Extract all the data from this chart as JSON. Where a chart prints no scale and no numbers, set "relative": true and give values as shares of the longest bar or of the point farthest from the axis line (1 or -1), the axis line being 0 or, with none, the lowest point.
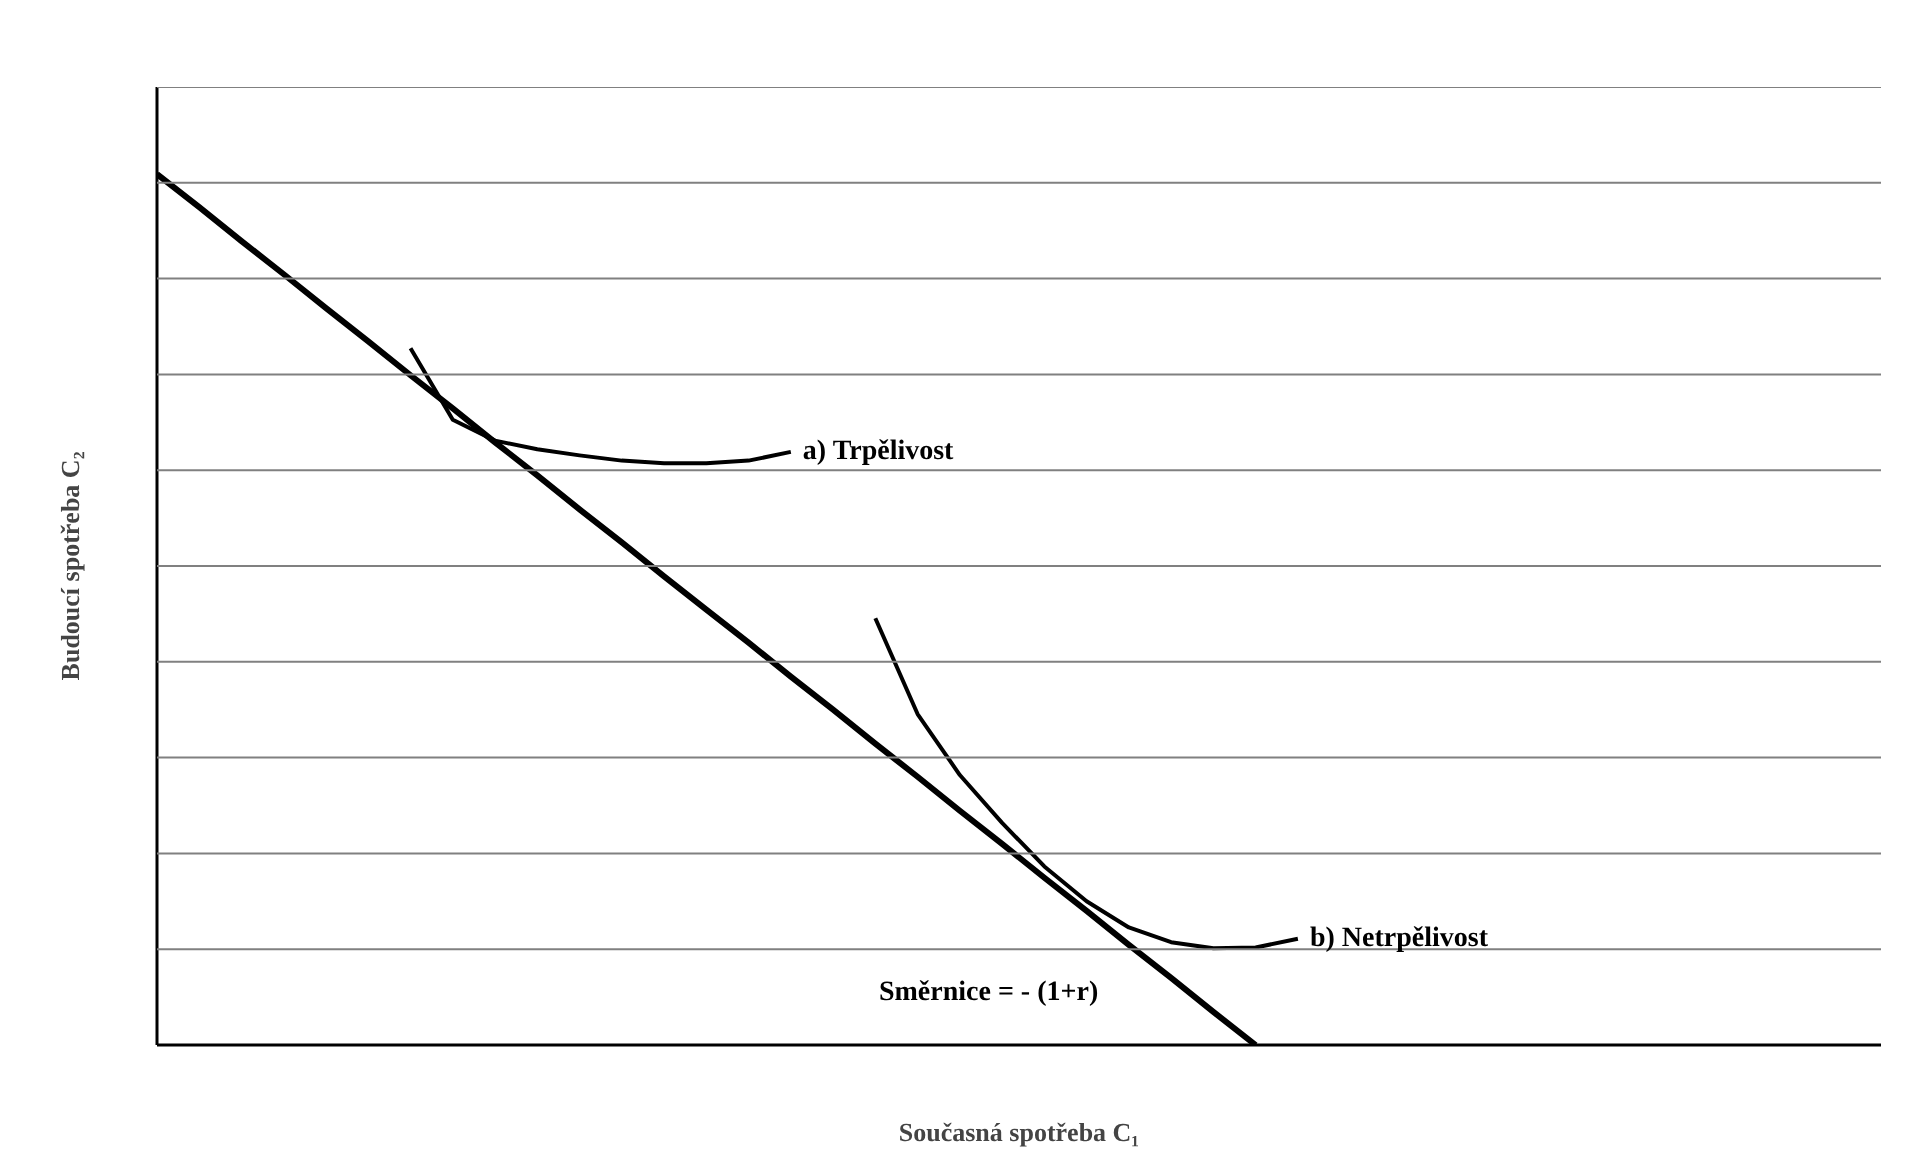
{
  "chart_data": {
    "type": "line",
    "relative": true,
    "grid": "y",
    "marker": "none",
    "line_style": "solid",
    "xlabel": "Současná spotřeba C₁",
    "ylabel": "Budoucí spotřeba C₂",
    "categories": [
      null,
      null,
      null,
      null,
      null,
      null,
      null,
      null,
      null,
      null,
      null,
      null,
      null,
      null,
      null,
      null,
      null,
      null,
      null,
      null,
      null,
      null,
      null,
      null,
      null,
      null,
      null,
      null,
      null,
      null,
      null,
      null,
      null,
      null,
      null,
      null,
      null,
      null,
      null,
      null,
      null
    ],
    "series": [
      {
        "color": "#000000",
        "values": [
          1,
          0.962,
          0.923,
          0.885,
          0.846,
          0.808,
          0.769,
          0.731,
          0.692,
          0.654,
          0.615,
          0.577,
          0.538,
          0.5,
          0.462,
          0.423,
          0.385,
          0.346,
          0.308,
          0.269,
          0.231,
          0.192,
          0.154,
          0.115,
          0.077,
          0.038,
          0,
          null,
          null,
          null,
          null,
          null,
          null,
          null,
          null,
          null,
          null,
          null,
          null,
          null,
          null
        ]
      },
      {
        "name": "a) Trpělivost",
        "color": "#000000",
        "values": [
          null,
          null,
          null,
          null,
          null,
          null,
          0.8,
          0.718,
          0.694,
          0.684,
          0.677,
          0.671,
          0.668,
          0.668,
          0.671,
          0.681,
          null,
          null,
          null,
          null,
          null,
          null,
          null,
          null,
          null,
          null,
          null,
          null,
          null,
          null,
          null,
          null,
          null,
          null,
          null,
          null,
          null,
          null,
          null,
          null,
          null
        ]
      },
      {
        "name": "b) Netrpělivost",
        "color": "#000000",
        "values": [
          null,
          null,
          null,
          null,
          null,
          null,
          null,
          null,
          null,
          null,
          null,
          null,
          null,
          null,
          null,
          null,
          null,
          0.49,
          0.38,
          0.31,
          0.255,
          0.205,
          0.165,
          0.135,
          0.118,
          0.111,
          0.112,
          0.122,
          null,
          null,
          null,
          null,
          null,
          null,
          null,
          null,
          null,
          null,
          null,
          null,
          null
        ]
      }
    ],
    "annotations": [
      "Směrnice = - (1+r)"
    ]
  }
}
